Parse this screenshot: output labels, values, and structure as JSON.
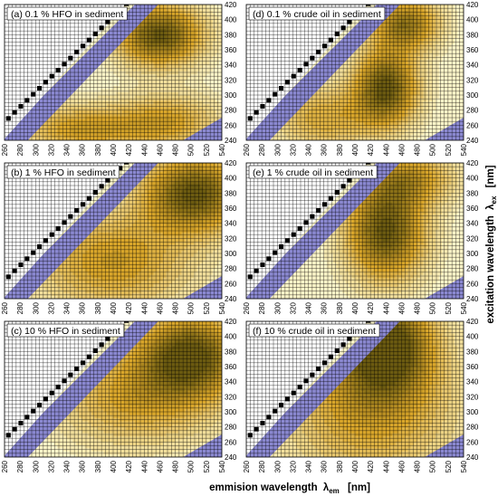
{
  "chart_data": {
    "type": "heatmap",
    "layout": "3 rows x 2 columns of excitation-emission contour maps",
    "xlabel": "emmision wavelength λem [nm]",
    "xlabel_main": "emmision wavelength",
    "xlabel_symbol": "λ",
    "xlabel_sub": "em",
    "xlabel_unit": "[nm]",
    "ylabel": "excitation wavelength λex [nm]",
    "ylabel_main": "excitation wavelength",
    "ylabel_symbol": "λ",
    "ylabel_sub": "ex",
    "ylabel_unit": "[nm]",
    "xlim": [
      260,
      540
    ],
    "ylim": [
      240,
      420
    ],
    "x_ticks": [
      260,
      280,
      300,
      320,
      340,
      360,
      380,
      400,
      420,
      440,
      460,
      480,
      500,
      520,
      540
    ],
    "y_ticks": [
      240,
      260,
      280,
      300,
      320,
      340,
      360,
      380,
      400,
      420
    ],
    "grid": true,
    "colors": {
      "high": "#6b5a10",
      "mid": "#d9a62a",
      "low": "#fbf4c8",
      "scatter_band": "#8a88d0",
      "grid": "#000000"
    },
    "panels": [
      {
        "label": "(a)  0.1 % HFO in sediment",
        "peaks": [
          {
            "em": 460,
            "ex": 380,
            "intensity": 1.0,
            "sx": 38,
            "sy": 28
          },
          {
            "em": 360,
            "ex": 255,
            "intensity": 0.55,
            "sx": 55,
            "sy": 22
          },
          {
            "em": 470,
            "ex": 265,
            "intensity": 0.5,
            "sx": 45,
            "sy": 25
          }
        ]
      },
      {
        "label": "(d)  0.1 % crude oil in sediment",
        "peaks": [
          {
            "em": 440,
            "ex": 310,
            "intensity": 1.0,
            "sx": 28,
            "sy": 35
          },
          {
            "em": 465,
            "ex": 395,
            "intensity": 0.8,
            "sx": 30,
            "sy": 25
          },
          {
            "em": 360,
            "ex": 270,
            "intensity": 0.45,
            "sx": 45,
            "sy": 30
          }
        ]
      },
      {
        "label": "(b)  1 % HFO in sediment",
        "peaks": [
          {
            "em": 505,
            "ex": 380,
            "intensity": 1.0,
            "sx": 45,
            "sy": 35
          },
          {
            "em": 400,
            "ex": 290,
            "intensity": 0.55,
            "sx": 70,
            "sy": 45
          }
        ]
      },
      {
        "label": "(e)  1 % crude oil in sediment",
        "peaks": [
          {
            "em": 440,
            "ex": 330,
            "intensity": 1.0,
            "sx": 35,
            "sy": 45
          },
          {
            "em": 470,
            "ex": 400,
            "intensity": 0.55,
            "sx": 40,
            "sy": 25
          }
        ]
      },
      {
        "label": "(c)  10 % HFO in sediment",
        "peaks": [
          {
            "em": 500,
            "ex": 375,
            "intensity": 1.0,
            "sx": 45,
            "sy": 38
          },
          {
            "em": 430,
            "ex": 320,
            "intensity": 0.5,
            "sx": 70,
            "sy": 45
          }
        ]
      },
      {
        "label": "(f)  10 % crude oil in sediment",
        "peaks": [
          {
            "em": 440,
            "ex": 390,
            "intensity": 1.0,
            "sx": 40,
            "sy": 45
          },
          {
            "em": 420,
            "ex": 310,
            "intensity": 0.55,
            "sx": 75,
            "sy": 70
          }
        ]
      }
    ]
  }
}
